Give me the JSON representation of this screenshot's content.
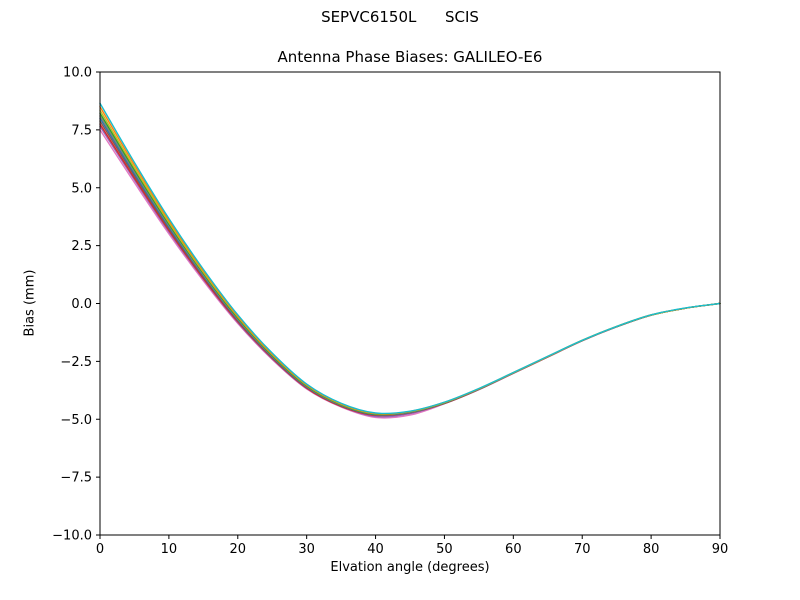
{
  "figure": {
    "background": "#ffffff",
    "axes_edge_color": "#000000"
  },
  "chart_data": {
    "type": "line",
    "suptitle": "SEPVC6150L      SCIS",
    "title": "Antenna Phase Biases: GALILEO-E6",
    "xlabel": "Elvation angle (degrees)",
    "ylabel": "Bias (mm)",
    "xlim": [
      0,
      90
    ],
    "ylim": [
      -10,
      10
    ],
    "grid": false,
    "legend": null,
    "xticks": [
      0,
      10,
      20,
      30,
      40,
      50,
      60,
      70,
      80,
      90
    ],
    "xtick_labels": [
      "0",
      "10",
      "20",
      "30",
      "40",
      "50",
      "60",
      "70",
      "80",
      "90"
    ],
    "yticks": [
      -10,
      -7.5,
      -5,
      -2.5,
      0,
      2.5,
      5,
      7.5,
      10
    ],
    "ytick_labels": [
      "−10.0",
      "−7.5",
      "−5.0",
      "−2.5",
      "0.0",
      "2.5",
      "5.0",
      "7.5",
      "10.0"
    ],
    "x": [
      0,
      5,
      10,
      15,
      20,
      25,
      30,
      35,
      40,
      45,
      50,
      55,
      60,
      65,
      70,
      75,
      80,
      85,
      90
    ],
    "series": [
      {
        "name": "bias-curve-1",
        "color": "#e377c2",
        "values": [
          7.5,
          5.22,
          3.01,
          0.98,
          -0.86,
          -2.42,
          -3.69,
          -4.47,
          -4.92,
          -4.82,
          -4.33,
          -3.72,
          -3.02,
          -2.31,
          -1.61,
          -1.01,
          -0.51,
          -0.2,
          0.0
        ]
      },
      {
        "name": "bias-curve-2",
        "color": "#9467bd",
        "values": [
          7.65,
          5.34,
          3.1,
          1.05,
          -0.82,
          -2.39,
          -3.67,
          -4.45,
          -4.88,
          -4.76,
          -4.32,
          -3.72,
          -3.01,
          -2.31,
          -1.61,
          -1.01,
          -0.5,
          -0.2,
          0.0
        ]
      },
      {
        "name": "bias-curve-3",
        "color": "#d62728",
        "values": [
          7.75,
          5.41,
          3.16,
          1.09,
          -0.78,
          -2.36,
          -3.65,
          -4.44,
          -4.83,
          -4.72,
          -4.32,
          -3.71,
          -3.01,
          -2.31,
          -1.61,
          -1.0,
          -0.5,
          -0.2,
          0.0
        ]
      },
      {
        "name": "bias-curve-4",
        "color": "#8c564b",
        "values": [
          7.88,
          5.51,
          3.23,
          1.15,
          -0.74,
          -2.33,
          -3.62,
          -4.42,
          -4.81,
          -4.71,
          -4.31,
          -3.71,
          -3.0,
          -2.3,
          -1.6,
          -1.0,
          -0.5,
          -0.2,
          0.0
        ]
      },
      {
        "name": "bias-curve-5",
        "color": "#1f77b4",
        "values": [
          8.0,
          5.6,
          3.3,
          1.2,
          -0.7,
          -2.3,
          -3.6,
          -4.4,
          -4.8,
          -4.7,
          -4.3,
          -3.7,
          -3.0,
          -2.3,
          -1.6,
          -1.0,
          -0.5,
          -0.2,
          0.0
        ]
      },
      {
        "name": "bias-curve-6",
        "color": "#7f7f7f",
        "values": [
          8.1,
          5.68,
          3.36,
          1.24,
          -0.67,
          -2.28,
          -3.58,
          -4.39,
          -4.79,
          -4.69,
          -4.29,
          -3.7,
          -3.0,
          -2.3,
          -1.6,
          -1.0,
          -0.5,
          -0.2,
          0.0
        ]
      },
      {
        "name": "bias-curve-7",
        "color": "#2ca02c",
        "values": [
          8.22,
          5.77,
          3.43,
          1.3,
          -0.63,
          -2.25,
          -3.56,
          -4.37,
          -4.78,
          -4.68,
          -4.29,
          -3.69,
          -2.99,
          -2.29,
          -1.6,
          -1.0,
          -0.5,
          -0.2,
          0.0
        ]
      },
      {
        "name": "bias-curve-8",
        "color": "#bcbd22",
        "values": [
          8.35,
          5.86,
          3.5,
          1.35,
          -0.58,
          -2.21,
          -3.53,
          -4.35,
          -4.76,
          -4.67,
          -4.28,
          -3.68,
          -2.99,
          -2.29,
          -1.59,
          -0.99,
          -0.5,
          -0.2,
          0.0
        ]
      },
      {
        "name": "bias-curve-9",
        "color": "#ff7f0e",
        "values": [
          8.5,
          5.98,
          3.59,
          1.42,
          -0.54,
          -2.18,
          -3.51,
          -4.33,
          -4.75,
          -4.66,
          -4.27,
          -3.68,
          -2.98,
          -2.29,
          -1.59,
          -0.99,
          -0.49,
          -0.2,
          0.0
        ]
      },
      {
        "name": "bias-curve-10",
        "color": "#17becf",
        "values": [
          8.65,
          6.09,
          3.67,
          1.48,
          -0.49,
          -2.14,
          -3.48,
          -4.31,
          -4.73,
          -4.65,
          -4.26,
          -3.67,
          -2.98,
          -2.28,
          -1.59,
          -0.99,
          -0.49,
          -0.19,
          0.0
        ]
      }
    ]
  }
}
